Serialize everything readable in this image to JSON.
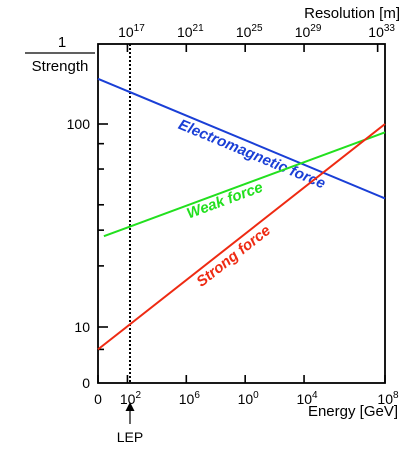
{
  "chart_data": {
    "type": "line",
    "y_axis": {
      "title_numerator": "1",
      "title_denominator": "Strength",
      "scale": "log",
      "ylim": [
        0,
        120
      ],
      "tick_labels": [
        {
          "value": 0,
          "text": "0"
        },
        {
          "value": 10,
          "text": "10"
        },
        {
          "value": 100,
          "text": "100"
        }
      ]
    },
    "x_axis_bottom": {
      "title": "Energy [GeV]",
      "scale": "log",
      "xlim_exponent": [
        0,
        19.5
      ],
      "tick_labels": [
        {
          "value": 0,
          "base": "0",
          "exp": ""
        },
        {
          "value": 2,
          "base": "10",
          "exp": "2"
        },
        {
          "value": 6,
          "base": "10",
          "exp": "6"
        },
        {
          "value": 10,
          "base": "10",
          "exp": "0"
        },
        {
          "value": 14,
          "base": "10",
          "exp": "4"
        },
        {
          "value": 19.5,
          "base": "10",
          "exp": "8"
        }
      ]
    },
    "x_axis_top": {
      "title": "Resolution [m]",
      "tick_labels": [
        {
          "value": 2,
          "base": "10",
          "exp": "17"
        },
        {
          "value": 6,
          "base": "10",
          "exp": "21"
        },
        {
          "value": 10,
          "base": "10",
          "exp": "25"
        },
        {
          "value": 14,
          "base": "10",
          "exp": "29"
        },
        {
          "value": 19,
          "base": "10",
          "exp": "33"
        }
      ]
    },
    "annotation": {
      "label": "LEP",
      "x": 2
    },
    "series": [
      {
        "name": "Electromagnetic force",
        "color": "#1a3fd6",
        "points": [
          [
            0,
            167
          ],
          [
            19.5,
            43
          ]
        ]
      },
      {
        "name": "Weak force",
        "color": "#22e01e",
        "points": [
          [
            0.4,
            28
          ],
          [
            19.5,
            91
          ]
        ]
      },
      {
        "name": "Strong force",
        "color": "#ee2a12",
        "points": [
          [
            0,
            6
          ],
          [
            19.5,
            100
          ]
        ]
      }
    ]
  }
}
